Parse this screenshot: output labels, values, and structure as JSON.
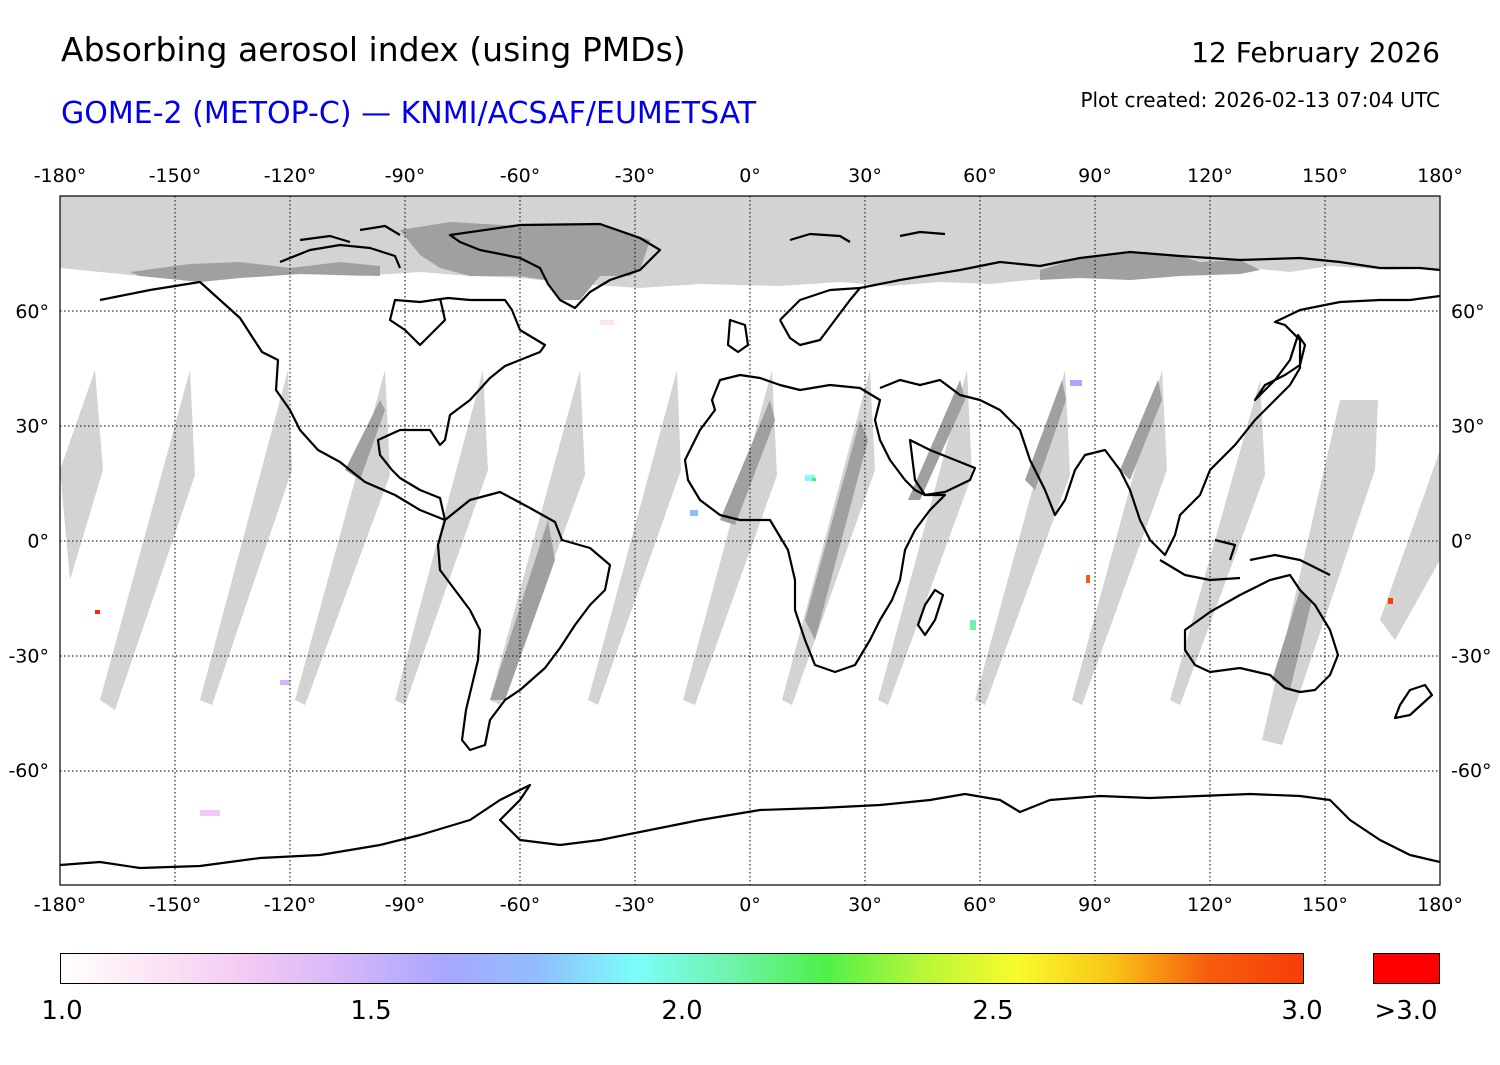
{
  "header": {
    "title": "Absorbing aerosol index (using PMDs)",
    "subtitle": "GOME-2 (METOP-C) — KNMI/ACSAF/EUMETSAT",
    "date": "12 February 2026",
    "created": "Plot created: 2026-02-13 07:04 UTC"
  },
  "colors": {
    "subtitle": "#0000ee",
    "nodata_light": "#d3d3d3",
    "nodata_dark": "#a0a0a0",
    "over_range": "#ff0000",
    "coast": "#000000"
  },
  "map": {
    "projection": "plate-carree",
    "lon_range": [
      -180,
      180
    ],
    "lat_range": [
      -90,
      90
    ],
    "lon_ticks": [
      -180,
      -150,
      -120,
      -90,
      -60,
      -30,
      0,
      30,
      60,
      90,
      120,
      150,
      180
    ],
    "lon_tick_labels": [
      "-180°",
      "-150°",
      "-120°",
      "-90°",
      "-60°",
      "-30°",
      "0°",
      "30°",
      "60°",
      "90°",
      "120°",
      "150°",
      "180°"
    ],
    "lat_ticks": [
      60,
      30,
      0,
      -30,
      -60
    ],
    "lat_tick_labels": [
      "60°",
      "30°",
      "0°",
      "-30°",
      "-60°"
    ],
    "gridlines": "dotted"
  },
  "colorbar": {
    "stops": [
      "#ffffff",
      "#fbe4f4",
      "#f2c8f4",
      "#d4b6f8",
      "#a9a6ff",
      "#91bdfd",
      "#7cfdfb",
      "#6ff3ac",
      "#4ff049",
      "#b6f639",
      "#f8fb2c",
      "#f8c516",
      "#f75d0e",
      "#f63e08"
    ],
    "labels": [
      "1.0",
      "1.5",
      "2.0",
      "2.5",
      "3.0"
    ],
    "label_values": [
      1.0,
      1.5,
      2.0,
      2.5,
      3.0
    ],
    "range": [
      1.0,
      3.0
    ],
    "over_label": ">3.0"
  }
}
